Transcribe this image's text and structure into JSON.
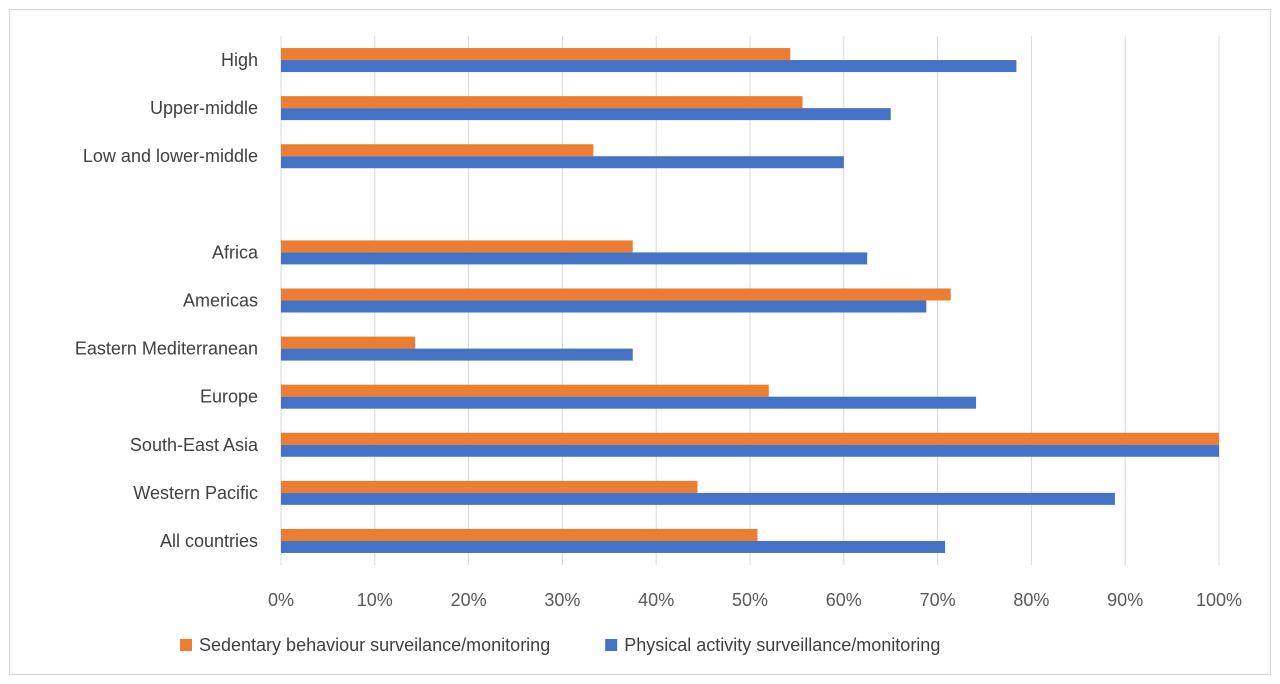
{
  "chart_data": {
    "type": "bar",
    "orientation": "horizontal",
    "title": "",
    "xlabel": "",
    "ylabel": "",
    "xlim": [
      0,
      100
    ],
    "x_tick_labels": [
      "0%",
      "10%",
      "20%",
      "30%",
      "40%",
      "50%",
      "60%",
      "70%",
      "80%",
      "90%",
      "100%"
    ],
    "grid": "vertical",
    "legend_position": "bottom",
    "categories": [
      "High",
      "Upper-middle",
      "Low and lower-middle",
      "",
      "Africa",
      "Americas",
      "Eastern Mediterranean",
      "Europe",
      "South-East Asia",
      "Western Pacific",
      "All countries"
    ],
    "series": [
      {
        "name": "Sedentary behaviour surveilance/monitoring",
        "color": "#ed7d31",
        "values": [
          54.3,
          55.6,
          33.3,
          null,
          37.5,
          71.4,
          14.3,
          52.0,
          100,
          44.4,
          50.8
        ]
      },
      {
        "name": "Physical activity surveillance/monitoring",
        "color": "#4472c4",
        "values": [
          78.4,
          65.0,
          60.0,
          null,
          62.5,
          68.8,
          37.5,
          74.1,
          100,
          88.9,
          70.8
        ]
      }
    ]
  }
}
